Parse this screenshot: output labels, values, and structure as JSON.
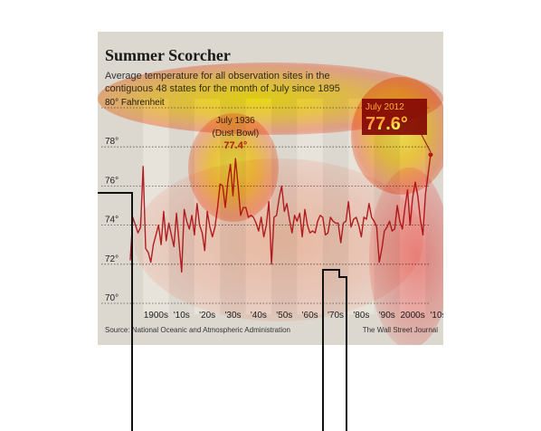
{
  "header": {
    "title": "Summer Scorcher",
    "subtitle": "Average temperature for all observation sites in the contiguous 48 states for the month of July since 1895"
  },
  "footer": {
    "source": "Source: National Oceanic and Atmospheric Administration",
    "credit": "The Wall Street Journal"
  },
  "colors": {
    "line": "#b02025",
    "background": "#ddd8cf",
    "band": "#e8e3da",
    "gridline": "#555555",
    "callout_box": "#8b1a1a",
    "callout_text": "#ffffff"
  },
  "chart_data": {
    "type": "line",
    "title": "Summer Scorcher",
    "subtitle": "Average temperature for all observation sites in the contiguous 48 states for the month of July since 1895",
    "ylabel": "80° Fahrenheit",
    "ylim": [
      70,
      80
    ],
    "yticks": [
      70,
      72,
      74,
      76,
      78,
      80
    ],
    "ytick_labels": [
      "70°",
      "72°",
      "74°",
      "76°",
      "78°",
      "80° Fahrenheit"
    ],
    "xlim": [
      1895,
      2012
    ],
    "xticks": [
      1900,
      1910,
      1920,
      1930,
      1940,
      1950,
      1960,
      1970,
      1980,
      1990,
      2000,
      2010
    ],
    "xtick_labels": [
      "1900s",
      "'10s",
      "'20s",
      "'30s",
      "'40s",
      "'50s",
      "'60s",
      "'70s",
      "'80s",
      "'90s",
      "2000s",
      "'10s"
    ],
    "grid": "horizontal dotted",
    "series": [
      {
        "x": [
          1895,
          1896,
          1897,
          1898,
          1899,
          1900,
          1901,
          1902,
          1903,
          1904,
          1905,
          1906,
          1907,
          1908,
          1909,
          1910,
          1911,
          1912,
          1913,
          1914,
          1915,
          1916,
          1917,
          1918,
          1919,
          1920,
          1921,
          1922,
          1923,
          1924,
          1925,
          1926,
          1927,
          1928,
          1929,
          1930,
          1931,
          1932,
          1933,
          1934,
          1935,
          1936,
          1937,
          1938,
          1939,
          1940,
          1941,
          1942,
          1943,
          1944,
          1945,
          1946,
          1947,
          1948,
          1949,
          1950,
          1951,
          1952,
          1953,
          1954,
          1955,
          1956,
          1957,
          1958,
          1959,
          1960,
          1961,
          1962,
          1963,
          1964,
          1965,
          1966,
          1967,
          1968,
          1969,
          1970,
          1971,
          1972,
          1973,
          1974,
          1975,
          1976,
          1977,
          1978,
          1979,
          1980,
          1981,
          1982,
          1983,
          1984,
          1985,
          1986,
          1987,
          1988,
          1989,
          1990,
          1991,
          1992,
          1993,
          1994,
          1995,
          1996,
          1997,
          1998,
          1999,
          2000,
          2001,
          2002,
          2003,
          2004,
          2005,
          2006,
          2007,
          2008,
          2009,
          2010,
          2011,
          2012
        ],
        "values": [
          72.2,
          74.4,
          74.0,
          73.6,
          73.9,
          77.0,
          72.8,
          72.6,
          72.1,
          73.0,
          73.5,
          74.0,
          73.0,
          74.7,
          73.2,
          74.1,
          73.5,
          72.9,
          74.6,
          73.1,
          71.6,
          74.8,
          74.2,
          73.8,
          74.5,
          73.5,
          75.1,
          74.0,
          73.6,
          72.7,
          74.7,
          73.9,
          73.4,
          73.9,
          74.9,
          76.1,
          76.0,
          74.9,
          76.2,
          77.1,
          75.5,
          77.4,
          76.0,
          74.5,
          74.9,
          74.9,
          74.4,
          74.5,
          74.4,
          74.1,
          73.7,
          74.4,
          73.4,
          74.0,
          75.2,
          72.0,
          74.4,
          74.5,
          75.4,
          76.0,
          74.7,
          75.1,
          74.3,
          73.6,
          74.5,
          74.2,
          74.6,
          73.4,
          74.8,
          74.0,
          73.6,
          73.7,
          73.6,
          74.2,
          74.5,
          74.4,
          73.5,
          73.6,
          74.4,
          74.2,
          74.1,
          74.1,
          73.1,
          74.1,
          74.2,
          75.2,
          73.9,
          74.3,
          74.4,
          74.0,
          73.4,
          74.4,
          74.3,
          75.1,
          74.4,
          74.2,
          73.9,
          72.1,
          72.8,
          73.7,
          73.9,
          74.2,
          73.7,
          73.8,
          75.0,
          74.2,
          73.8,
          74.9,
          75.8,
          74.0,
          75.4,
          76.2,
          75.5,
          74.3,
          73.5,
          75.6,
          76.6,
          77.6
        ]
      }
    ],
    "annotations": [
      {
        "line1": "July 1936",
        "line2": "(Dust Bowl)",
        "value": "77.4°",
        "x": 1936,
        "y": 77.4
      },
      {
        "line1": "July 2012",
        "value": "77.6°",
        "x": 2012,
        "y": 77.6
      }
    ]
  }
}
